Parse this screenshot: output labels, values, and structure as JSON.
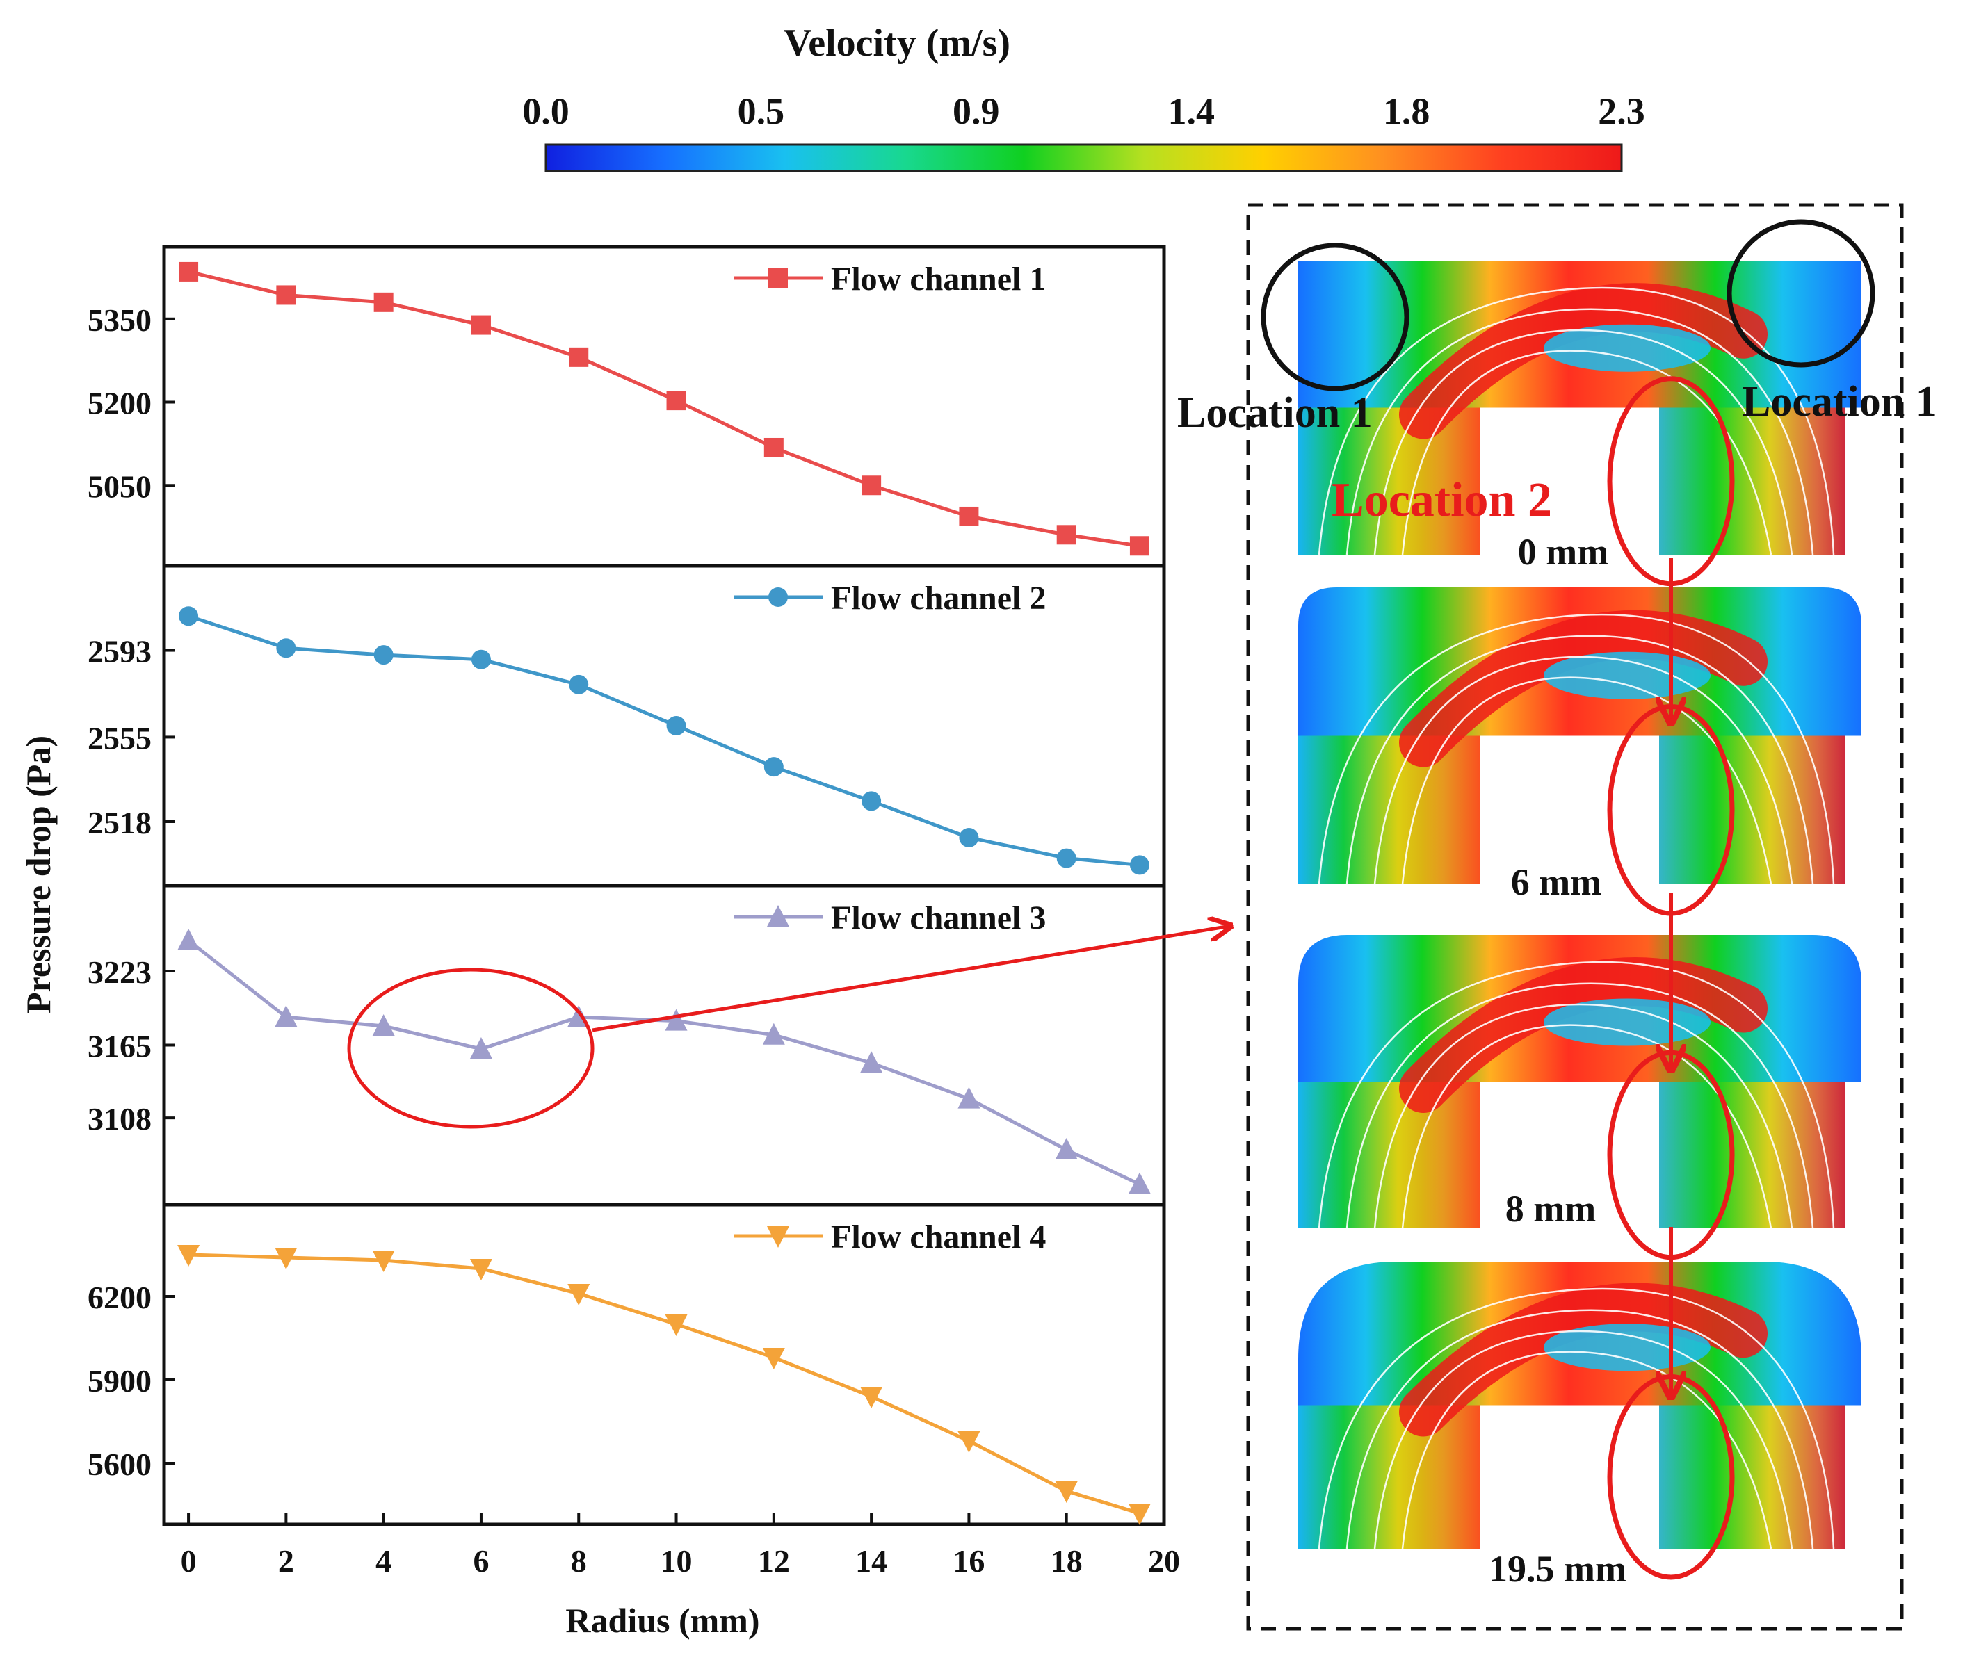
{
  "colorbar": {
    "title": "Velocity (m/s)",
    "ticks": [
      "0.0",
      "0.5",
      "0.9",
      "1.4",
      "1.8",
      "2.3"
    ],
    "stops": [
      "#1020e0",
      "#1670ff",
      "#19c0f0",
      "#18d890",
      "#10d020",
      "#b6e020",
      "#ffd000",
      "#ff9020",
      "#ff4020",
      "#ee1a1a"
    ]
  },
  "chart_data": [
    {
      "type": "line",
      "x": [
        0,
        2,
        4,
        6,
        8,
        10,
        12,
        14,
        16,
        18,
        19.5
      ],
      "xlabel": "Radius (mm)",
      "ylabel": "Pressure drop (Pa)",
      "xlim": [
        -0.5,
        20
      ],
      "xticks": [
        "0",
        "2",
        "4",
        "6",
        "8",
        "10",
        "12",
        "14",
        "16",
        "18",
        "20"
      ],
      "series": [
        {
          "name": "Flow channel 1",
          "marker": "square",
          "color": "#e94c4c",
          "values": [
            5435,
            5393,
            5380,
            5339,
            5281,
            5203,
            5118,
            5050,
            4994,
            4961,
            4941
          ],
          "ylim": [
            4905,
            5480
          ],
          "yticks": [
            5050,
            5200,
            5350
          ]
        },
        {
          "name": "Flow channel 2",
          "marker": "circle",
          "color": "#3f97c9",
          "values": [
            2608,
            2594,
            2591,
            2589,
            2578,
            2560,
            2542,
            2527,
            2511,
            2502,
            2499
          ],
          "ylim": [
            2490,
            2630
          ],
          "yticks": [
            2518,
            2555,
            2593
          ]
        },
        {
          "name": "Flow channel 3",
          "marker": "triangle-up",
          "color": "#9e9dcb",
          "values": [
            3247,
            3187,
            3180,
            3162,
            3187,
            3184,
            3173,
            3151,
            3123,
            3083,
            3056
          ],
          "ylim": [
            3040,
            3290
          ],
          "yticks": [
            3108,
            3165,
            3223
          ]
        },
        {
          "name": "Flow channel 4",
          "marker": "triangle-down",
          "color": "#f4a339",
          "values": [
            6350,
            6340,
            6330,
            6300,
            6210,
            6100,
            5980,
            5840,
            5680,
            5500,
            5420
          ],
          "ylim": [
            5380,
            6530
          ],
          "yticks": [
            5600,
            5900,
            6200
          ]
        }
      ]
    }
  ],
  "annotations": {
    "location1_left": "Location 1",
    "location1_right": "Location 1",
    "location2": "Location 2",
    "slices": [
      "0 mm",
      "6 mm",
      "8 mm",
      "19.5 mm"
    ]
  }
}
